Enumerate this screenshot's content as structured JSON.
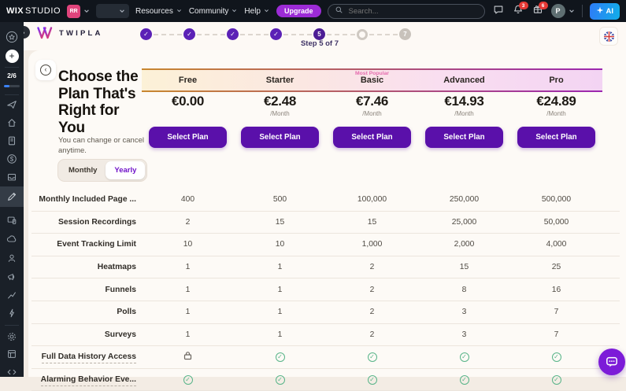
{
  "topbar": {
    "brand_primary": "WIX",
    "brand_secondary": "STUDIO",
    "workspace_badge": "RR",
    "menus": [
      {
        "label": "Resources"
      },
      {
        "label": "Community"
      },
      {
        "label": "Help"
      }
    ],
    "upgrade_label": "Upgrade",
    "search_placeholder": "Search...",
    "badges": {
      "notifications": "3",
      "releases": "6"
    },
    "avatar_initial": "P",
    "ai_label": "AI",
    "icons": [
      "comments-icon",
      "bell-icon",
      "releases-icon",
      "search-icon",
      "chevron-down-icon",
      "sparkle-icon"
    ]
  },
  "stepbar": {
    "logo_text": "TWIPLA",
    "step_label": "Step 5 of 7",
    "steps": [
      {
        "state": "done"
      },
      {
        "state": "done"
      },
      {
        "state": "done"
      },
      {
        "state": "done"
      },
      {
        "state": "current",
        "number": "5"
      },
      {
        "state": "next",
        "number": ""
      },
      {
        "state": "upcoming",
        "number": "7"
      }
    ]
  },
  "sidebar": {
    "progress_label": "2/6",
    "progress_percent": 35,
    "icons": [
      "workspace-star-icon",
      "add-icon",
      "rocket-icon",
      "home-icon",
      "pages-icon",
      "payments-icon",
      "media-icon",
      "design-icon",
      "devices-icon",
      "apps-cloud-icon",
      "contacts-icon",
      "marketing-icon",
      "analytics-icon",
      "automations-icon",
      "settings-icon",
      "content-manager-icon",
      "code-icon"
    ]
  },
  "main": {
    "title": "Choose the Plan That's Right for You",
    "subtitle": "You can change or cancel anytime.",
    "billing": {
      "monthly_label": "Monthly",
      "yearly_label": "Yearly",
      "selected": "Yearly"
    },
    "most_popular_label": "Most Popular",
    "select_plan_label": "Select Plan",
    "per_month_label": "/Month",
    "plans": [
      {
        "name": "Free",
        "price": "€0.00",
        "per_month": false,
        "most_popular": false
      },
      {
        "name": "Starter",
        "price": "€2.48",
        "per_month": true,
        "most_popular": false
      },
      {
        "name": "Basic",
        "price": "€7.46",
        "per_month": true,
        "most_popular": true
      },
      {
        "name": "Advanced",
        "price": "€14.93",
        "per_month": true,
        "most_popular": false
      },
      {
        "name": "Pro",
        "price": "€24.89",
        "per_month": true,
        "most_popular": false
      }
    ],
    "features": [
      {
        "label": "Monthly Included Page ...",
        "tooltip": false,
        "values": [
          "400",
          "500",
          "100,000",
          "250,000",
          "500,000"
        ]
      },
      {
        "label": "Session Recordings",
        "tooltip": false,
        "values": [
          "2",
          "15",
          "15",
          "25,000",
          "50,000"
        ]
      },
      {
        "label": "Event Tracking Limit",
        "tooltip": false,
        "values": [
          "10",
          "10",
          "1,000",
          "2,000",
          "4,000"
        ]
      },
      {
        "label": "Heatmaps",
        "tooltip": false,
        "values": [
          "1",
          "1",
          "2",
          "15",
          "25"
        ]
      },
      {
        "label": "Funnels",
        "tooltip": false,
        "values": [
          "1",
          "1",
          "2",
          "8",
          "16"
        ]
      },
      {
        "label": "Polls",
        "tooltip": false,
        "values": [
          "1",
          "1",
          "2",
          "3",
          "7"
        ]
      },
      {
        "label": "Surveys",
        "tooltip": false,
        "values": [
          "1",
          "1",
          "2",
          "3",
          "7"
        ]
      },
      {
        "label": "Full Data History Access",
        "tooltip": true,
        "values": [
          "lock",
          "check",
          "check",
          "check",
          "check"
        ]
      },
      {
        "label": "Alarming Behavior Eve...",
        "tooltip": true,
        "values": [
          "check",
          "check",
          "check",
          "check",
          "check"
        ]
      }
    ]
  },
  "chat_widget": {
    "icon": "chat-bubble-icon"
  },
  "colors": {
    "accent_purple": "#5a10aa",
    "step_purple": "#5b21b6",
    "upgrade_purple": "#9c2bd6",
    "workspace_badge_pink": "#e0447c",
    "ai_blue": "#2e7cf6",
    "check_green": "#58b488",
    "most_popular_pink": "#e56cae",
    "band_gradient_start": "#fcf1d7",
    "band_gradient_end": "#f3d4f3"
  }
}
